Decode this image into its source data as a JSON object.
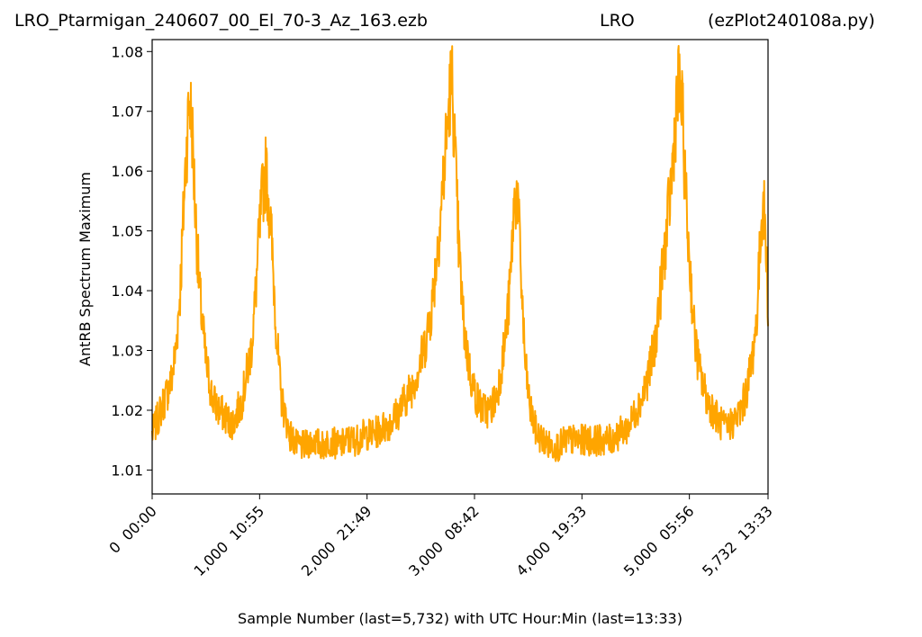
{
  "header": {
    "file_name": "LRO_Ptarmigan_240607_00_El_70-3_Az_163.ezb",
    "site": "LRO",
    "program": "(ezPlot240108a.py)"
  },
  "chart_data": {
    "type": "line",
    "xlabel": "Sample Number (last=5,732) with UTC Hour:Min (last=13:33)",
    "ylabel": "AntRB Spectrum Maximum",
    "xlim": [
      0,
      5732
    ],
    "ylim": [
      1.006,
      1.082
    ],
    "grid": false,
    "line_color": "#ffa500",
    "x_ticks": [
      {
        "value": 0,
        "label": "0  00:00"
      },
      {
        "value": 1000,
        "label": "1,000  10:55"
      },
      {
        "value": 2000,
        "label": "2,000  21:49"
      },
      {
        "value": 3000,
        "label": "3,000  08:42"
      },
      {
        "value": 4000,
        "label": "4,000  19:33"
      },
      {
        "value": 5000,
        "label": "5,000  05:56"
      },
      {
        "value": 5732,
        "label": "5,732  13:33"
      }
    ],
    "y_ticks": [
      1.01,
      1.02,
      1.03,
      1.04,
      1.05,
      1.06,
      1.07,
      1.08
    ],
    "y_tick_labels": [
      "1.01",
      "1.02",
      "1.03",
      "1.04",
      "1.05",
      "1.06",
      "1.07",
      "1.08"
    ],
    "series": [
      {
        "x": [
          0,
          60,
          120,
          180,
          220,
          260,
          285,
          300,
          320,
          345,
          370,
          400,
          440,
          500,
          560,
          620,
          680,
          720,
          760,
          800,
          840,
          880,
          920,
          950,
          975,
          1000,
          1030,
          1060,
          1100,
          1130,
          1160,
          1200,
          1280,
          1350,
          1420,
          1500,
          1580,
          1660,
          1740,
          1820,
          1900,
          1980,
          2060,
          2140,
          2220,
          2300,
          2360,
          2420,
          2480,
          2540,
          2600,
          2640,
          2680,
          2720,
          2750,
          2775,
          2790,
          2810,
          2830,
          2860,
          2900,
          2960,
          3020,
          3080,
          3140,
          3200,
          3240,
          3280,
          3320,
          3345,
          3360,
          3380,
          3400,
          3420,
          3445,
          3470,
          3520,
          3580,
          3640,
          3700,
          3780,
          3860,
          3940,
          4020,
          4100,
          4180,
          4260,
          4340,
          4420,
          4460,
          4500,
          4560,
          4620,
          4680,
          4720,
          4760,
          4800,
          4840,
          4860,
          4880,
          4900,
          4920,
          4945,
          4960,
          4990,
          5020,
          5050,
          5100,
          5160,
          5220,
          5280,
          5340,
          5400,
          5450,
          5500,
          5540,
          5580,
          5620,
          5640,
          5660,
          5680,
          5700,
          5715,
          5732
        ],
        "y": [
          1.016,
          1.019,
          1.022,
          1.025,
          1.03,
          1.04,
          1.05,
          1.057,
          1.064,
          1.072,
          1.068,
          1.054,
          1.04,
          1.028,
          1.022,
          1.02,
          1.019,
          1.018,
          1.018,
          1.02,
          1.022,
          1.026,
          1.03,
          1.036,
          1.043,
          1.05,
          1.057,
          1.06,
          1.052,
          1.042,
          1.032,
          1.022,
          1.016,
          1.014,
          1.014,
          1.015,
          1.014,
          1.015,
          1.014,
          1.015,
          1.015,
          1.016,
          1.016,
          1.017,
          1.018,
          1.02,
          1.022,
          1.024,
          1.027,
          1.031,
          1.037,
          1.044,
          1.052,
          1.061,
          1.068,
          1.074,
          1.075,
          1.068,
          1.057,
          1.045,
          1.034,
          1.026,
          1.022,
          1.02,
          1.02,
          1.022,
          1.026,
          1.031,
          1.038,
          1.045,
          1.052,
          1.056,
          1.056,
          1.048,
          1.038,
          1.028,
          1.02,
          1.016,
          1.015,
          1.014,
          1.014,
          1.015,
          1.015,
          1.015,
          1.015,
          1.015,
          1.015,
          1.016,
          1.017,
          1.018,
          1.02,
          1.022,
          1.026,
          1.031,
          1.038,
          1.045,
          1.052,
          1.06,
          1.066,
          1.071,
          1.074,
          1.073,
          1.066,
          1.058,
          1.048,
          1.04,
          1.032,
          1.026,
          1.022,
          1.02,
          1.018,
          1.017,
          1.018,
          1.019,
          1.021,
          1.024,
          1.028,
          1.034,
          1.04,
          1.048,
          1.055,
          1.052,
          1.046,
          1.038
        ]
      }
    ]
  }
}
